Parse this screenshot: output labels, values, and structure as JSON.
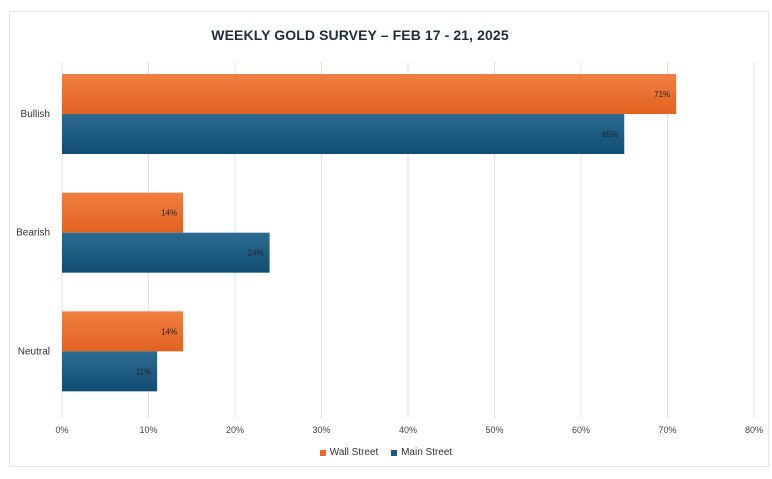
{
  "chart_data": {
    "type": "bar",
    "orientation": "horizontal",
    "title": "WEEKLY GOLD SURVEY – FEB 17 - 21, 2025",
    "categories": [
      "Bullish",
      "Bearish",
      "Neutral"
    ],
    "series": [
      {
        "name": "Wall Street",
        "values": [
          71,
          14,
          14
        ],
        "color": "#e8692a"
      },
      {
        "name": "Main Street",
        "values": [
          65,
          24,
          11
        ],
        "color": "#1d5a80"
      }
    ],
    "xlim": [
      0,
      80
    ],
    "xticks": [
      "0%",
      "10%",
      "20%",
      "30%",
      "40%",
      "50%",
      "60%",
      "70%",
      "80%"
    ],
    "data_labels": [
      [
        "71%",
        "14%",
        "14%"
      ],
      [
        "65%",
        "24%",
        "11%"
      ]
    ],
    "grid": true,
    "legend": "bottom"
  }
}
